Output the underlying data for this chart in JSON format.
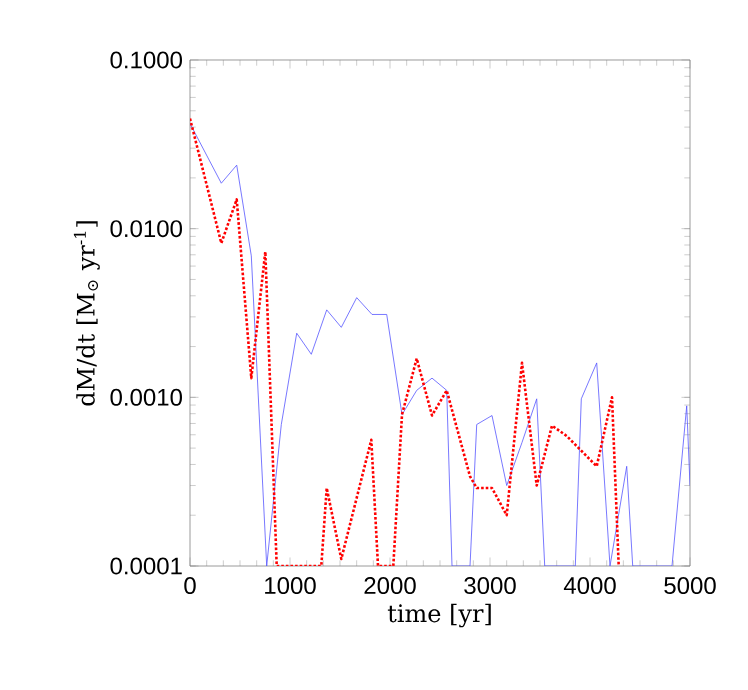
{
  "chart_data": {
    "type": "line",
    "xlabel": "time [yr]",
    "ylabel": "dM/dt [M$_{⊙}$ yr$^{-1}$]",
    "log": "y",
    "marker": "none",
    "xlim": [
      0,
      5000
    ],
    "xticks": [
      0,
      1000,
      2000,
      3000,
      4000,
      5000
    ],
    "ylim": [
      0.0001,
      0.1
    ],
    "yticks": [
      {
        "value": 0.0001,
        "label": "0.0001"
      },
      {
        "value": 0.001,
        "label": "0.0010"
      },
      {
        "value": 0.01,
        "label": "0.0100"
      },
      {
        "value": 0.1,
        "label": "0.1000"
      }
    ],
    "series": [
      {
        "color": "#5555ff",
        "line_style": "solid",
        "x": [
          0,
          313,
          467,
          613,
          767,
          913,
          1067,
          1213,
          1367,
          1513,
          1667,
          1820,
          1967,
          2120,
          2267,
          2420,
          2567,
          2620,
          2800,
          2867,
          3020,
          3167,
          3320,
          3467,
          3547,
          3853,
          3913,
          4067,
          4200,
          4367,
          4427,
          4820,
          4967,
          5000
        ],
        "values": [
          0.042,
          0.0186,
          0.0238,
          0.0069,
          0.0001,
          0.00069,
          0.0024,
          0.0018,
          0.0033,
          0.0026,
          0.0039,
          0.0031,
          0.0031,
          0.00079,
          0.0011,
          0.0013,
          0.0011,
          0.0001,
          0.0001,
          0.00069,
          0.00078,
          0.0003,
          0.00054,
          0.00098,
          0.0001,
          0.0001,
          0.00098,
          0.0016,
          0.0001,
          0.00039,
          0.0001,
          0.0001,
          0.00089,
          0.0003
        ]
      },
      {
        "color": "#ff0000",
        "line_style": "dotted",
        "x": [
          0,
          313,
          467,
          613,
          753,
          867,
          1313,
          1367,
          1513,
          1813,
          1880,
          2033,
          2120,
          2267,
          2420,
          2567,
          2800,
          2867,
          3020,
          3167,
          3320,
          3467,
          3620,
          3767,
          4067,
          4220,
          4287
        ],
        "values": [
          0.045,
          0.0082,
          0.0149,
          0.0013,
          0.0073,
          0.0001,
          0.0001,
          0.00029,
          0.00011,
          0.00056,
          0.0001,
          0.0001,
          0.00079,
          0.0017,
          0.00078,
          0.0011,
          0.00034,
          0.00029,
          0.00029,
          0.0002,
          0.0016,
          0.0003,
          0.00068,
          0.00059,
          0.00039,
          0.001,
          0.0001
        ]
      }
    ]
  }
}
